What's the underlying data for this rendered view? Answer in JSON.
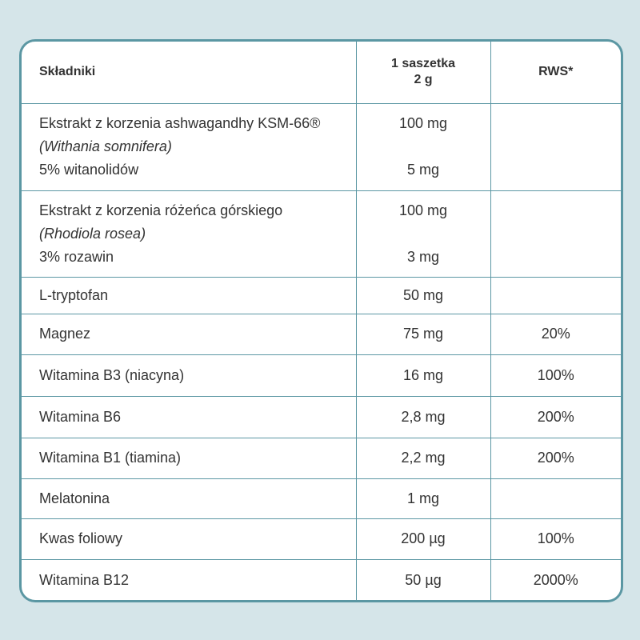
{
  "header": [
    "Składniki",
    [
      "1 saszetka",
      "2 g"
    ],
    "RWS*"
  ],
  "rows": [
    {
      "ingredient": "Ekstrakt z korzenia ashwagandhy KSM-66®",
      "latin": "(Withania somnifera)",
      "sub": "5% witanolidów",
      "amount": "100 mg",
      "sub_amount": "5 mg"
    },
    {
      "ingredient": "Ekstrakt z korzenia różeńca górskiego",
      "latin": "(Rhodiola rosea)",
      "sub": "3% rozawin",
      "amount": "100 mg",
      "sub_amount": "3 mg"
    },
    {
      "ingredient": "L-tryptofan",
      "amount": "50 mg"
    },
    {
      "ingredient": "Magnez",
      "amount": "75 mg",
      "rws": "20%"
    },
    {
      "ingredient": "Witamina B3 (niacyna)",
      "amount": "16 mg",
      "rws": "100%"
    },
    {
      "ingredient": "Witamina B6",
      "amount": "2,8 mg",
      "rws": "200%"
    },
    {
      "ingredient": "Witamina B1 (tiamina)",
      "amount": "2,2 mg",
      "rws": "200%"
    },
    {
      "ingredient": "Melatonina",
      "amount": "1 mg"
    },
    {
      "ingredient": "Kwas foliowy",
      "amount": "200 µg",
      "rws": "100%"
    },
    {
      "ingredient": "Witamina B12",
      "amount": "50 µg",
      "rws": "2000%"
    }
  ]
}
